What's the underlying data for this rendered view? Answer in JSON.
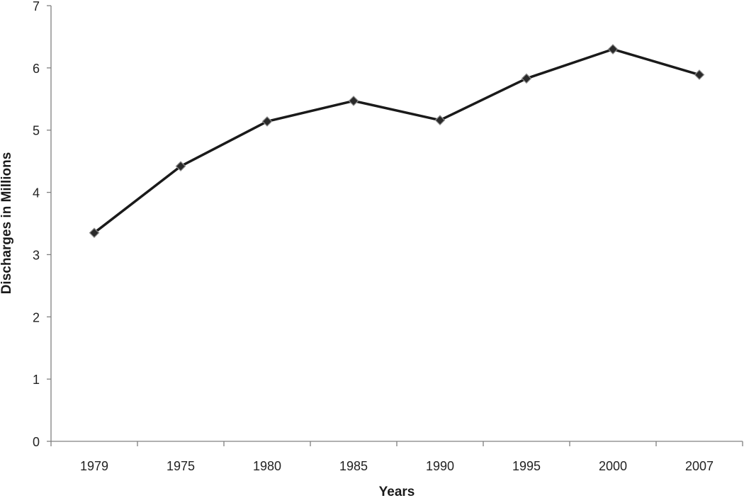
{
  "chart_data": {
    "type": "line",
    "title": "",
    "xlabel": "Years",
    "ylabel": "Discharges in Millions",
    "categories": [
      "1979",
      "1975",
      "1980",
      "1985",
      "1990",
      "1995",
      "2000",
      "2007"
    ],
    "series": [
      {
        "values": [
          3.35,
          4.42,
          5.14,
          5.47,
          5.16,
          5.83,
          6.3,
          5.89
        ]
      }
    ],
    "ylim": [
      0,
      7
    ],
    "yticks": [
      "0",
      "1",
      "2",
      "3",
      "4",
      "5",
      "6",
      "7"
    ],
    "grid": false,
    "legend": "none",
    "colors": {
      "line": "#1a1a1a",
      "marker": "#2a2a2a",
      "axis": "#808080"
    }
  }
}
